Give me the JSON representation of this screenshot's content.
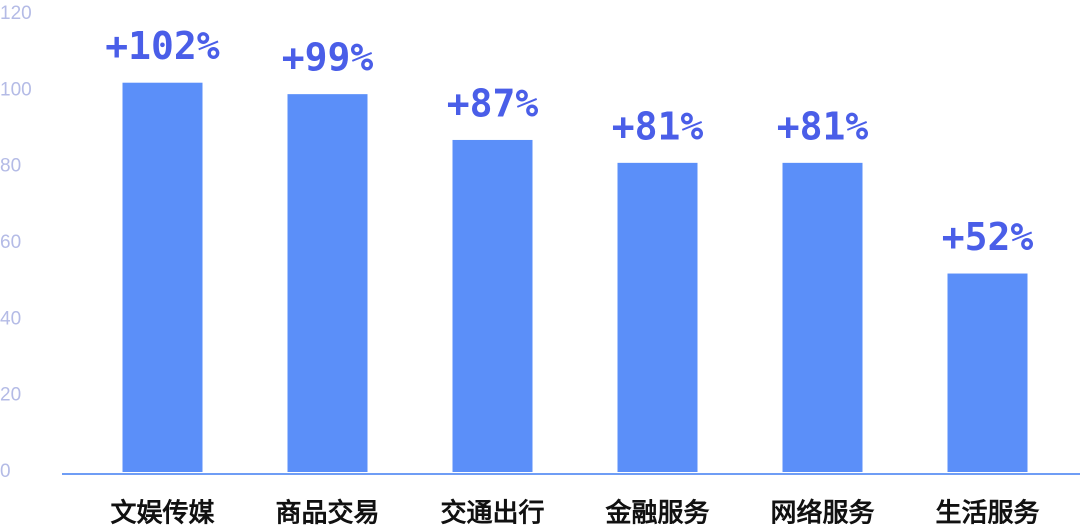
{
  "chart_data": {
    "type": "bar",
    "categories": [
      "文娱传媒",
      "商品交易",
      "交通出行",
      "金融服务",
      "网络服务",
      "生活服务"
    ],
    "values": [
      102,
      99,
      87,
      81,
      81,
      52
    ],
    "value_labels": [
      "+102%",
      "+99%",
      "+87%",
      "+81%",
      "+81%",
      "+52%"
    ],
    "color": "#5b8ff9",
    "ylim": [
      0,
      120
    ],
    "yticks": [
      0,
      20,
      40,
      60,
      80,
      100,
      120
    ],
    "grid": false
  }
}
